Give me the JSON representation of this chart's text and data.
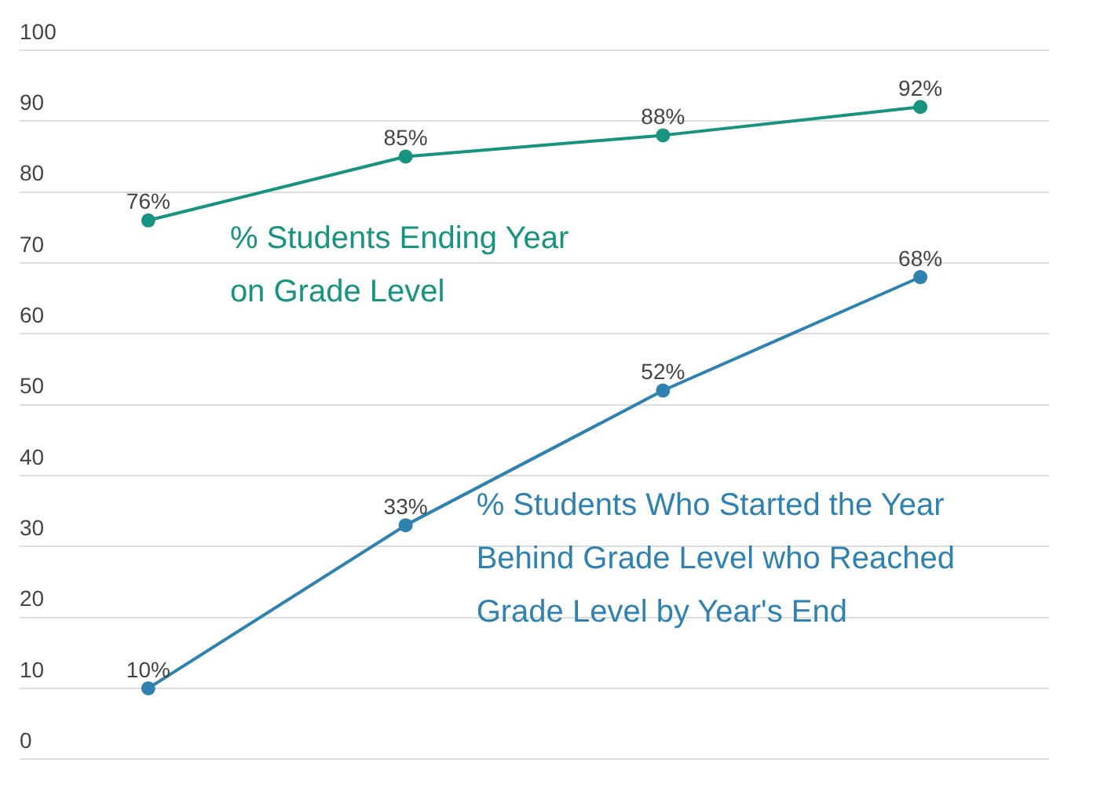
{
  "chart_data": {
    "type": "line",
    "categories": [
      null,
      null,
      null,
      null
    ],
    "series": [
      {
        "name": "% Students Ending Year on Grade Level",
        "color": "#17937f",
        "values": [
          76,
          85,
          88,
          92
        ],
        "value_labels": [
          "76%",
          "85%",
          "88%",
          "92%"
        ]
      },
      {
        "name": "% Students Who Started the Year Behind Grade Level who Reached Grade Level by Year's End",
        "color": "#2f82b0",
        "values": [
          10,
          33,
          52,
          68
        ],
        "value_labels": [
          "10%",
          "33%",
          "52%",
          "68%"
        ]
      }
    ],
    "ylim": [
      0,
      100
    ],
    "yticks": [
      0,
      10,
      20,
      30,
      40,
      50,
      60,
      70,
      80,
      90,
      100
    ],
    "grid": "y",
    "legend": false,
    "marker": "circle",
    "line_style": "solid"
  }
}
